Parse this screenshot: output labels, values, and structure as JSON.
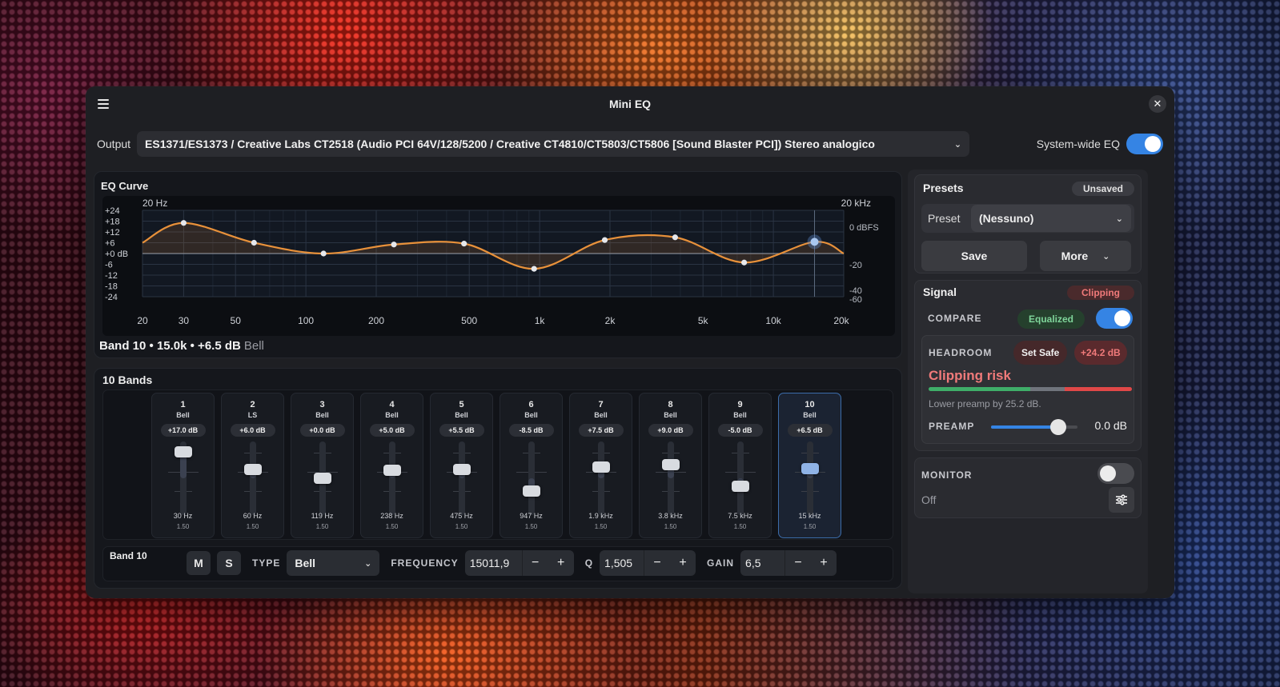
{
  "window": {
    "title": "Mini EQ"
  },
  "output": {
    "label": "Output",
    "device": "ES1371/ES1373 / Creative Labs CT2518 (Audio PCI 64V/128/5200 / Creative CT4810/CT5803/CT5806 [Sound Blaster PCI]) Stereo analogico",
    "system_wide_label": "System-wide EQ",
    "system_wide_on": true
  },
  "eq_curve": {
    "title": "EQ Curve",
    "left_freq_label": "20 Hz",
    "right_freq_label": "20 kHz",
    "db_ticks": [
      "+24",
      "+18",
      "+12",
      "+6",
      "+0 dB",
      "-6",
      "-12",
      "-18",
      "-24"
    ],
    "dbfs_labels": [
      "0 dBFS",
      "-20",
      "-40",
      "-60"
    ],
    "freq_ticks": [
      "20",
      "30",
      "50",
      "100",
      "200",
      "500",
      "1k",
      "2k",
      "5k",
      "10k",
      "20k"
    ],
    "selected_info": "Band 10 • 15.0k • +6.5 dB",
    "selected_type": "Bell"
  },
  "bands": {
    "title": "10 Bands",
    "items": [
      {
        "num": "1",
        "type": "Bell",
        "gain": "+17.0 dB",
        "gain_db": 17.0,
        "freq": "30 Hz",
        "q": "1.50"
      },
      {
        "num": "2",
        "type": "LS",
        "gain": "+6.0 dB",
        "gain_db": 6.0,
        "freq": "60 Hz",
        "q": "1.50"
      },
      {
        "num": "3",
        "type": "Bell",
        "gain": "+0.0 dB",
        "gain_db": 0.0,
        "freq": "119 Hz",
        "q": "1.50"
      },
      {
        "num": "4",
        "type": "Bell",
        "gain": "+5.0 dB",
        "gain_db": 5.0,
        "freq": "238 Hz",
        "q": "1.50"
      },
      {
        "num": "5",
        "type": "Bell",
        "gain": "+5.5 dB",
        "gain_db": 5.5,
        "freq": "475 Hz",
        "q": "1.50"
      },
      {
        "num": "6",
        "type": "Bell",
        "gain": "-8.5 dB",
        "gain_db": -8.5,
        "freq": "947 Hz",
        "q": "1.50"
      },
      {
        "num": "7",
        "type": "Bell",
        "gain": "+7.5 dB",
        "gain_db": 7.5,
        "freq": "1.9 kHz",
        "q": "1.50"
      },
      {
        "num": "8",
        "type": "Bell",
        "gain": "+9.0 dB",
        "gain_db": 9.0,
        "freq": "3.8 kHz",
        "q": "1.50"
      },
      {
        "num": "9",
        "type": "Bell",
        "gain": "-5.0 dB",
        "gain_db": -5.0,
        "freq": "7.5 kHz",
        "q": "1.50"
      },
      {
        "num": "10",
        "type": "Bell",
        "gain": "+6.5 dB",
        "gain_db": 6.5,
        "freq": "15 kHz",
        "q": "1.50"
      }
    ],
    "selected_index": 9
  },
  "band_editor": {
    "label": "Band 10",
    "mute": "M",
    "solo": "S",
    "type_label": "TYPE",
    "type_value": "Bell",
    "freq_label": "FREQUENCY",
    "freq_value": "15011,9",
    "q_label": "Q",
    "q_value": "1,505",
    "gain_label": "GAIN",
    "gain_value": "6,5",
    "minus": "−",
    "plus": "+"
  },
  "presets": {
    "title": "Presets",
    "status": "Unsaved",
    "preset_label": "Preset",
    "preset_value": "(Nessuno)",
    "save": "Save",
    "more": "More"
  },
  "signal": {
    "title": "Signal",
    "status": "Clipping",
    "compare_label": "COMPARE",
    "compare_state": "Equalized",
    "compare_on": true,
    "headroom_label": "HEADROOM",
    "set_safe": "Set Safe",
    "headroom_value": "+24.2 dB",
    "risk_title": "Clipping risk",
    "risk_hint": "Lower preamp by 25.2 dB.",
    "preamp_label": "PREAMP",
    "preamp_value": "0.0 dB",
    "preamp_level": 0.78
  },
  "monitor": {
    "label": "MONITOR",
    "state": "Off",
    "on": false
  },
  "colors": {
    "accent": "#3584e4",
    "curve": "#e8913a",
    "clip": "#f07a7a",
    "ok": "#7fd49a"
  },
  "icons": {
    "menu": "hamburger-icon",
    "close": "close-icon",
    "chevron": "chevron-down-icon",
    "tune": "sliders-icon"
  }
}
